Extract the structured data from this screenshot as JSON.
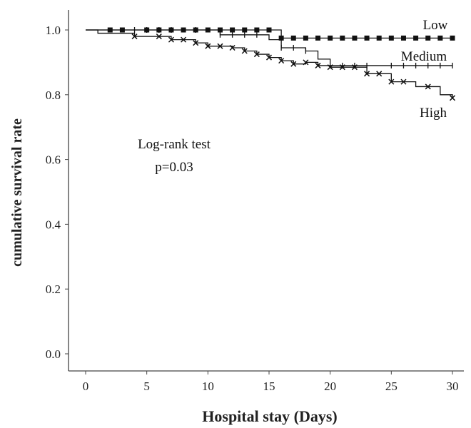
{
  "chart_data": {
    "type": "line",
    "xlabel": "Hospital stay (Days)",
    "ylabel": "cumulative survival rate",
    "xlim": [
      0,
      30
    ],
    "ylim": [
      0,
      1.0
    ],
    "x_ticks": [
      "0",
      "5",
      "10",
      "15",
      "20",
      "25",
      "30"
    ],
    "y_ticks": [
      "0.0",
      "0.2",
      "0.4",
      "0.6",
      "0.8",
      "1.0"
    ],
    "annotation": [
      "Log-rank test",
      "p=0.03"
    ],
    "series": [
      {
        "name": "Low",
        "marker": "square",
        "steps": [
          [
            0,
            1.0
          ],
          [
            16,
            0.975
          ],
          [
            30,
            0.975
          ]
        ],
        "censor_x": [
          2,
          3,
          5,
          6,
          7,
          8,
          9,
          10,
          11,
          12,
          13,
          14,
          15,
          16,
          17,
          18,
          19,
          20,
          21,
          22,
          23,
          24,
          25,
          26,
          27,
          28,
          29,
          30
        ]
      },
      {
        "name": "Medium",
        "marker": "plus",
        "steps": [
          [
            0,
            1.0
          ],
          [
            11,
            0.985
          ],
          [
            15,
            0.97
          ],
          [
            16,
            0.945
          ],
          [
            18,
            0.935
          ],
          [
            19,
            0.91
          ],
          [
            20,
            0.89
          ],
          [
            30,
            0.89
          ]
        ],
        "censor_x": [
          4,
          5,
          6,
          7,
          9,
          11,
          12,
          13,
          14,
          16,
          17,
          18,
          21,
          22,
          23,
          25,
          26,
          27,
          28,
          29,
          30
        ]
      },
      {
        "name": "High",
        "marker": "x",
        "steps": [
          [
            0,
            1.0
          ],
          [
            1,
            0.99
          ],
          [
            4,
            0.98
          ],
          [
            7,
            0.97
          ],
          [
            9,
            0.96
          ],
          [
            10,
            0.95
          ],
          [
            12,
            0.945
          ],
          [
            13,
            0.935
          ],
          [
            14,
            0.925
          ],
          [
            15,
            0.915
          ],
          [
            16,
            0.905
          ],
          [
            17,
            0.895
          ],
          [
            18,
            0.9
          ],
          [
            19,
            0.89
          ],
          [
            20,
            0.885
          ],
          [
            23,
            0.865
          ],
          [
            25,
            0.84
          ],
          [
            27,
            0.825
          ],
          [
            29,
            0.8
          ],
          [
            30,
            0.79
          ]
        ],
        "censor_x": [
          4,
          6,
          7,
          8,
          9,
          10,
          11,
          12,
          13,
          14,
          15,
          16,
          17,
          18,
          19,
          20,
          21,
          22,
          23,
          24,
          25,
          26,
          28,
          30
        ]
      }
    ]
  }
}
